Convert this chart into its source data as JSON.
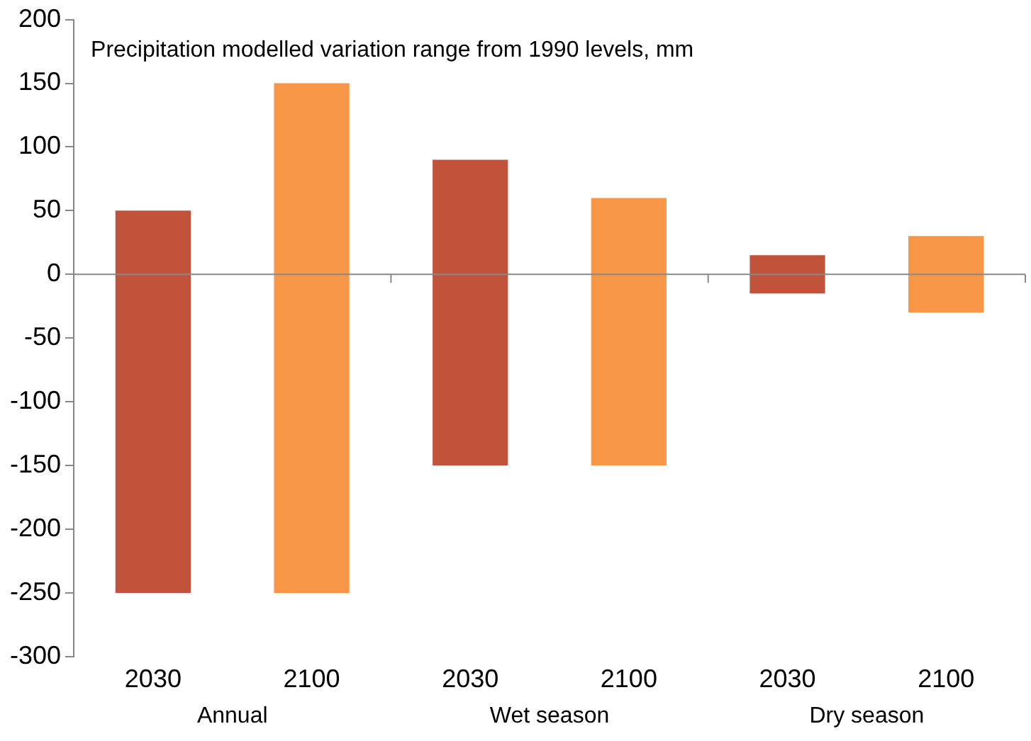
{
  "chart_data": {
    "type": "bar",
    "title": "Precipitation modelled variation range from 1990 levels, mm",
    "categories": [
      "2030",
      "2100",
      "2030",
      "2100",
      "2030",
      "2100"
    ],
    "base": [
      -250,
      -250,
      -150,
      -150,
      -15,
      -30
    ],
    "values": [
      300,
      400,
      240,
      210,
      30,
      60
    ],
    "colors": [
      "#c0533a",
      "#f79646",
      "#c0533a",
      "#f79646",
      "#c0533a",
      "#f79646"
    ],
    "ylim": [
      -300,
      200
    ],
    "yticks": [
      -300,
      -250,
      -200,
      -150,
      -100,
      -50,
      0,
      50,
      100,
      150,
      200
    ],
    "grid": false,
    "legend": false,
    "ref_lines": [
      {
        "axis": "y",
        "value": 0,
        "color": "#888888"
      }
    ],
    "annotations": [
      "Annual",
      "Wet season",
      "Dry season"
    ]
  }
}
